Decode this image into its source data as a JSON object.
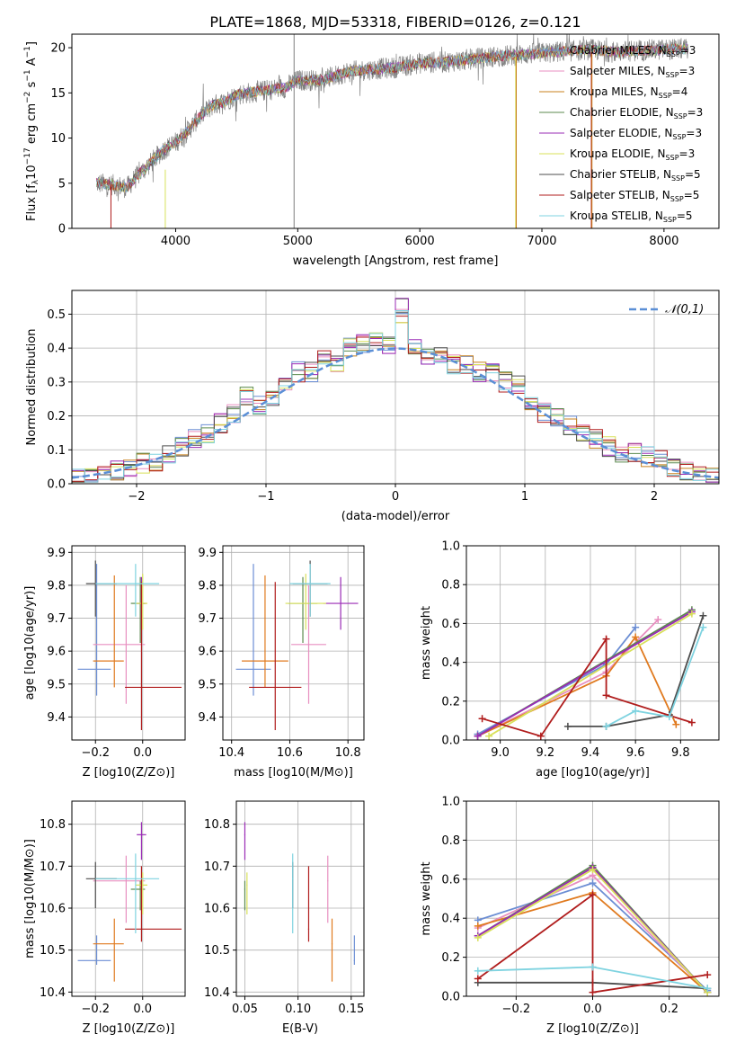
{
  "figure": {
    "title": "PLATE=1868, MJD=53318, FIBERID=0126, z=0.121"
  },
  "chart_data": [
    {
      "id": "spectrum",
      "type": "line",
      "xlabel": "wavelength [Angstrom, rest frame]",
      "ylabel": "Flux [f_λ 10^-17 erg cm^-2 s^-1 A^-1]",
      "xlim": [
        3150,
        8450
      ],
      "ylim": [
        0,
        21.5
      ],
      "xticks": [
        4000,
        5000,
        6000,
        7000,
        8000
      ],
      "yticks": [
        0,
        5,
        10,
        15,
        20
      ],
      "grid": false,
      "legend_position": "top-right",
      "smooth_curve": {
        "x": [
          3350,
          3500,
          3600,
          3700,
          3800,
          3900,
          4000,
          4100,
          4200,
          4300,
          4400,
          4500,
          4700,
          4900,
          5000,
          5200,
          5400,
          5600,
          5800,
          6000,
          6200,
          6400,
          6600,
          6800,
          7000,
          7200,
          7400,
          7600,
          7800,
          8000,
          8200
        ],
        "y": [
          5.0,
          4.8,
          4.5,
          6.0,
          7.3,
          8.7,
          9.5,
          10.8,
          12.4,
          13.6,
          14.0,
          14.8,
          15.2,
          15.6,
          16.4,
          16.4,
          17.3,
          17.6,
          17.8,
          18.3,
          18.4,
          18.7,
          19.0,
          19.2,
          19.4,
          19.6,
          19.8,
          19.5,
          19.7,
          19.8,
          19.9
        ]
      },
      "series": [
        {
          "name": "Chabrier MILES, N_SSP=3",
          "legend": "Chabrier MILES, N",
          "sub": "SSP",
          "suffix": "=3",
          "color": "#6c8ed4"
        },
        {
          "name": "Salpeter MILES, N_SSP=3",
          "legend": "Salpeter MILES, N",
          "sub": "SSP",
          "suffix": "=3",
          "color": "#e88fc0"
        },
        {
          "name": "Kroupa MILES, N_SSP=4",
          "legend": "Kroupa MILES, N",
          "sub": "SSP",
          "suffix": "=4",
          "color": "#c8801c"
        },
        {
          "name": "Chabrier ELODIE, N_SSP=3",
          "legend": "Chabrier ELODIE, N",
          "sub": "SSP",
          "suffix": "=3",
          "color": "#5b8a4e"
        },
        {
          "name": "Salpeter ELODIE, N_SSP=3",
          "legend": "Salpeter ELODIE, N",
          "sub": "SSP",
          "suffix": "=3",
          "color": "#9a2bb5"
        },
        {
          "name": "Kroupa ELODIE, N_SSP=3",
          "legend": "Kroupa ELODIE, N",
          "sub": "SSP",
          "suffix": "=3",
          "color": "#d8e05a"
        },
        {
          "name": "Chabrier STELIB, N_SSP=5",
          "legend": "Chabrier STELIB, N",
          "sub": "SSP",
          "suffix": "=5",
          "color": "#4d4d4d"
        },
        {
          "name": "Salpeter STELIB, N_SSP=5",
          "legend": "Salpeter STELIB, N",
          "sub": "SSP",
          "suffix": "=5",
          "color": "#b01c1c"
        },
        {
          "name": "Kroupa STELIB, N_SSP=5",
          "legend": "Kroupa STELIB, N",
          "sub": "SSP",
          "suffix": "=5",
          "color": "#7fd3e0"
        }
      ],
      "data_series": {
        "name": "data",
        "color": "#808080"
      },
      "spikes": [
        {
          "x": 3470,
          "top": 5.0,
          "color": "#b01c1c"
        },
        {
          "x": 3915,
          "top": 6.5,
          "color": "#d8e05a"
        },
        {
          "x": 4970,
          "top": 21.5,
          "color": "#808080"
        },
        {
          "x": 6785,
          "top": 19.0,
          "color": "#d8e05a"
        },
        {
          "x": 6790,
          "top": 19.0,
          "color": "#c8801c"
        },
        {
          "x": 7405,
          "top": 19.5,
          "color": "#b01c1c"
        },
        {
          "x": 7410,
          "top": 19.5,
          "color": "#c8801c"
        }
      ]
    },
    {
      "id": "residuals",
      "type": "line",
      "xlabel": "(data-model)/error",
      "ylabel": "Normed distribution",
      "xlim": [
        -2.5,
        2.5
      ],
      "ylim": [
        0,
        0.57
      ],
      "xticks": [
        -2,
        -1,
        0,
        1,
        2
      ],
      "yticks": [
        0.0,
        0.1,
        0.2,
        0.3,
        0.4,
        0.5
      ],
      "grid": true,
      "legend_position": "top-right",
      "gaussian_label": "𝒩(0,1)",
      "gaussian_color": "#5b8fd6",
      "bins": [
        -2.5,
        -2.4,
        -2.3,
        -2.2,
        -2.1,
        -2.0,
        -1.9,
        -1.8,
        -1.7,
        -1.6,
        -1.5,
        -1.4,
        -1.3,
        -1.2,
        -1.1,
        -1.0,
        -0.9,
        -0.8,
        -0.7,
        -0.6,
        -0.5,
        -0.4,
        -0.3,
        -0.2,
        -0.1,
        0.0,
        0.1,
        0.2,
        0.3,
        0.4,
        0.5,
        0.6,
        0.7,
        0.8,
        0.9,
        1.0,
        1.1,
        1.2,
        1.3,
        1.4,
        1.5,
        1.6,
        1.7,
        1.8,
        1.9,
        2.0,
        2.1,
        2.2,
        2.3,
        2.4,
        2.5
      ],
      "base_heights": [
        0.02,
        0.02,
        0.03,
        0.04,
        0.05,
        0.06,
        0.06,
        0.09,
        0.11,
        0.13,
        0.15,
        0.18,
        0.21,
        0.26,
        0.23,
        0.25,
        0.29,
        0.33,
        0.33,
        0.38,
        0.35,
        0.4,
        0.41,
        0.42,
        0.41,
        0.43,
        0.4,
        0.38,
        0.38,
        0.35,
        0.35,
        0.33,
        0.33,
        0.3,
        0.29,
        0.24,
        0.21,
        0.2,
        0.17,
        0.15,
        0.13,
        0.11,
        0.09,
        0.09,
        0.08,
        0.07,
        0.05,
        0.04,
        0.03,
        0.02
      ]
    },
    {
      "id": "age-vs-Z",
      "type": "scatter",
      "xlabel": "Z [log10(Z/Z⊙)]",
      "ylabel": "age [log10(age/yr)]",
      "xlim": [
        -0.3,
        0.18
      ],
      "ylim": [
        9.33,
        9.92
      ],
      "xticks": [
        -0.2,
        0.0
      ],
      "yticks": [
        9.4,
        9.5,
        9.6,
        9.7,
        9.8,
        9.9
      ],
      "grid": true
    },
    {
      "id": "age-vs-mass",
      "type": "scatter",
      "xlabel": "mass [log10(M/M⊙)]",
      "ylabel": "",
      "xlim": [
        10.37,
        10.855
      ],
      "ylim": [
        9.33,
        9.92
      ],
      "xticks": [
        10.4,
        10.6,
        10.8
      ],
      "yticks": [
        9.4,
        9.5,
        9.6,
        9.7,
        9.8,
        9.9
      ],
      "grid": true
    },
    {
      "id": "weight-vs-age",
      "type": "line",
      "xlabel": "age [log10(age/yr)]",
      "ylabel": "mass weight",
      "xlim": [
        8.85,
        9.97
      ],
      "ylim": [
        0,
        1.0
      ],
      "xticks": [
        9.0,
        9.2,
        9.4,
        9.6,
        9.8
      ],
      "yticks": [
        0.0,
        0.2,
        0.4,
        0.6,
        0.8,
        1.0
      ],
      "grid": true
    },
    {
      "id": "mass-vs-Z",
      "type": "scatter",
      "xlabel": "Z [log10(Z/Z⊙)]",
      "ylabel": "mass [log10(M/M⊙)]",
      "xlim": [
        -0.3,
        0.18
      ],
      "ylim": [
        10.39,
        10.855
      ],
      "xticks": [
        -0.2,
        0.0
      ],
      "yticks": [
        10.4,
        10.5,
        10.6,
        10.7,
        10.8
      ],
      "grid": true
    },
    {
      "id": "mass-vs-EBV",
      "type": "scatter",
      "xlabel": "E(B-V)",
      "ylabel": "",
      "xlim": [
        0.042,
        0.162
      ],
      "ylim": [
        10.39,
        10.855
      ],
      "xticks": [
        0.05,
        0.1,
        0.15
      ],
      "yticks": [
        10.4,
        10.5,
        10.6,
        10.7,
        10.8
      ],
      "grid": true
    },
    {
      "id": "weight-vs-Z",
      "type": "line",
      "xlabel": "Z [log10(Z/Z⊙)]",
      "ylabel": "mass weight",
      "xlim": [
        -0.33,
        0.33
      ],
      "ylim": [
        0,
        1.0
      ],
      "xticks": [
        -0.2,
        0.0,
        0.2
      ],
      "yticks": [
        0.0,
        0.2,
        0.4,
        0.6,
        0.8,
        1.0
      ],
      "grid": true
    }
  ],
  "fits": [
    {
      "color": "#6c8ed4",
      "Z": -0.195,
      "Zlo": 0.08,
      "Zhi": 0.06,
      "age": 9.545,
      "agelo": 0.08,
      "agehi": 0.32,
      "mass": 10.475,
      "masslo": 0.01,
      "masshi": 0.06,
      "massErr": 0.06,
      "ebv": 0.153,
      "ages": [
        8.9,
        9.47,
        9.6
      ],
      "wt_age": [
        0.03,
        0.39,
        0.58
      ],
      "Zs": [
        -0.3,
        0.0,
        0.3
      ],
      "wt_Z": [
        0.39,
        0.58,
        0.03
      ]
    },
    {
      "color": "#e88fc0",
      "Z": -0.07,
      "Zlo": 0.14,
      "Zhi": 0.08,
      "age": 9.62,
      "agelo": 0.18,
      "agehi": 0.18,
      "mass": 10.665,
      "masslo": 0.1,
      "masshi": 0.06,
      "massErr": 0.06,
      "ebv": 0.128,
      "ages": [
        8.9,
        9.47,
        9.7
      ],
      "wt_age": [
        0.02,
        0.35,
        0.62
      ],
      "Zs": [
        -0.3,
        0.0,
        0.3
      ],
      "wt_Z": [
        0.35,
        0.62,
        0.02
      ]
    },
    {
      "color": "#e07a1f",
      "Z": -0.12,
      "Zlo": 0.09,
      "Zhi": 0.04,
      "age": 9.57,
      "agelo": 0.08,
      "agehi": 0.26,
      "mass": 10.515,
      "masslo": 0.09,
      "masshi": 0.06,
      "massErr": 0.08,
      "ebv": 0.132,
      "ages": [
        8.9,
        9.47,
        9.6,
        9.78
      ],
      "wt_age": [
        0.02,
        0.33,
        0.53,
        0.08
      ],
      "Zs": [
        -0.3,
        0.0,
        0.3
      ],
      "wt_Z": [
        0.36,
        0.53,
        0.02
      ]
    },
    {
      "color": "#5b8a4e",
      "Z": -0.01,
      "Zlo": 0.04,
      "Zhi": 0.02,
      "age": 9.745,
      "agelo": 0.12,
      "agehi": 0.08,
      "mass": 10.645,
      "masslo": 0.05,
      "masshi": 0.02,
      "massErr": 0.05,
      "ebv": 0.05,
      "ages": [
        8.9,
        9.85
      ],
      "wt_age": [
        0.02,
        0.67
      ],
      "Zs": [
        -0.3,
        0.0,
        0.3
      ],
      "wt_Z": [
        0.31,
        0.67,
        0.02
      ]
    },
    {
      "color": "#9a2bb5",
      "Z": -0.005,
      "Zlo": 0.02,
      "Zhi": 0.02,
      "age": 9.745,
      "agelo": 0.08,
      "agehi": 0.08,
      "mass": 10.775,
      "masslo": 0.06,
      "masshi": 0.03,
      "massErr": 0.06,
      "ebv": 0.05,
      "ages": [
        8.9,
        9.85
      ],
      "wt_age": [
        0.02,
        0.66
      ],
      "Zs": [
        -0.3,
        0.0,
        0.3
      ],
      "wt_Z": [
        0.31,
        0.66,
        0.02
      ]
    },
    {
      "color": "#d8e05a",
      "Z": 0.0,
      "Zlo": 0.03,
      "Zhi": 0.02,
      "age": 9.745,
      "agelo": 0.08,
      "agehi": 0.09,
      "mass": 10.655,
      "masslo": 0.07,
      "masshi": 0.03,
      "massErr": 0.07,
      "ebv": 0.052,
      "ages": [
        8.95,
        9.85
      ],
      "wt_age": [
        0.02,
        0.65
      ],
      "Zs": [
        -0.3,
        0.0,
        0.3
      ],
      "wt_Z": [
        0.3,
        0.65,
        0.02
      ]
    },
    {
      "color": "#4d4d4d",
      "Z": -0.2,
      "Zlo": 0.04,
      "Zhi": 0.09,
      "age": 9.805,
      "agelo": 0.1,
      "agehi": 0.07,
      "mass": 10.67,
      "masslo": 0.07,
      "masshi": 0.04,
      "massErr": 0.06,
      "ebv": 0.095,
      "ages": [
        9.3,
        9.47,
        9.75,
        9.9
      ],
      "wt_age": [
        0.07,
        0.07,
        0.13,
        0.64
      ],
      "Zs": [
        -0.3,
        0.0,
        0.3
      ],
      "wt_Z": [
        0.07,
        0.07,
        0.04
      ]
    },
    {
      "color": "#b01c1c",
      "Z": -0.005,
      "Zlo": 0.07,
      "Zhi": 0.17,
      "age": 9.49,
      "agelo": 0.13,
      "agehi": 0.32,
      "mass": 10.55,
      "masslo": 0.03,
      "masshi": 0.15,
      "massErr": 0.09,
      "ebv": 0.11,
      "ages": [
        8.92,
        9.18,
        9.47,
        9.47,
        9.85
      ],
      "wt_age": [
        0.11,
        0.02,
        0.52,
        0.23,
        0.09
      ],
      "Zs": [
        -0.3,
        0.0,
        0.0,
        0.3
      ],
      "wt_Z": [
        0.09,
        0.52,
        0.02,
        0.11
      ]
    },
    {
      "color": "#7fd3e0",
      "Z": -0.03,
      "Zlo": 0.17,
      "Zhi": 0.1,
      "age": 9.805,
      "agelo": 0.1,
      "agehi": 0.06,
      "mass": 10.67,
      "masslo": 0.13,
      "masshi": 0.06,
      "massErr": 0.07,
      "ebv": 0.095,
      "ages": [
        9.47,
        9.6,
        9.75,
        9.9
      ],
      "wt_age": [
        0.07,
        0.15,
        0.12,
        0.58
      ],
      "Zs": [
        -0.3,
        0.0,
        0.3
      ],
      "wt_Z": [
        0.13,
        0.15,
        0.04
      ]
    }
  ]
}
